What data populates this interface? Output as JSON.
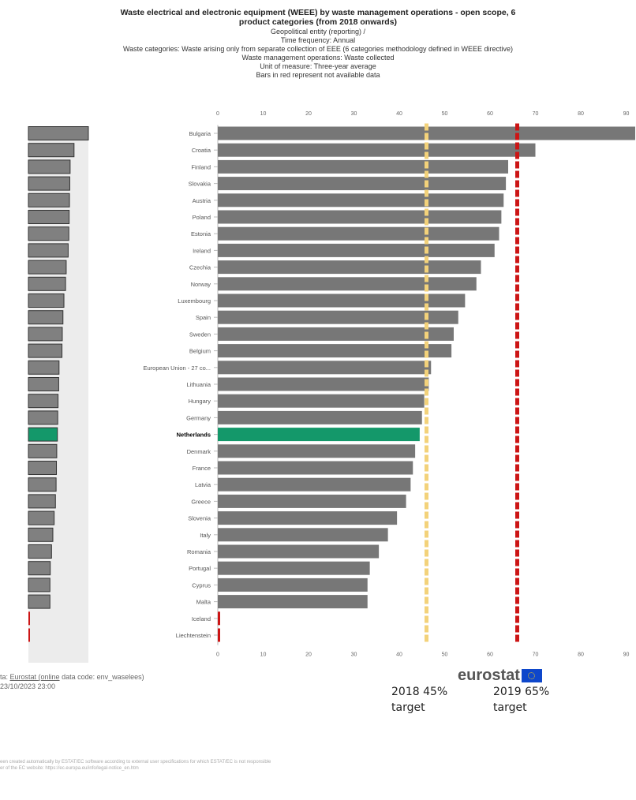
{
  "chart_data": {
    "type": "bar",
    "orientation": "horizontal",
    "title_lines": [
      "Waste electrical and electronic equipment (WEEE) by waste management operations - open scope, 6",
      "product categories (from 2018 onwards)"
    ],
    "subtitle_lines": [
      "Geopolitical entity (reporting) /",
      "Time frequency: Annual",
      "Waste categories: Waste arising only from separate collection of EEE (6 categories methodology defined in WEEE directive)",
      "Waste management operations: Waste collected",
      "Unit of measure: Three-year average",
      "Bars in red represent not available data"
    ],
    "categories": [
      "Bulgaria",
      "Croatia",
      "Finland",
      "Slovakia",
      "Austria",
      "Poland",
      "Estonia",
      "Ireland",
      "Czechia",
      "Norway",
      "Luxembourg",
      "Spain",
      "Sweden",
      "Belgium",
      "European Union - 27 co...",
      "Lithuania",
      "Hungary",
      "Germany",
      "Netherlands",
      "Denmark",
      "France",
      "Latvia",
      "Greece",
      "Slovenia",
      "Italy",
      "Romania",
      "Portugal",
      "Cyprus",
      "Malta",
      "Iceland",
      "Liechtenstein"
    ],
    "values": [
      92,
      70,
      64,
      63.5,
      63,
      62.5,
      62,
      61,
      58,
      57,
      54.5,
      53,
      52,
      51.5,
      47,
      46.5,
      45.5,
      45,
      44.5,
      43.5,
      43,
      42.5,
      41.5,
      39.5,
      37.5,
      35.5,
      33.5,
      33,
      33,
      null,
      null
    ],
    "not_available": [
      "Iceland",
      "Liechtenstein"
    ],
    "highlight": "Netherlands",
    "xlim": [
      0,
      90
    ],
    "xticks": [
      0,
      10,
      20,
      30,
      40,
      50,
      60,
      70,
      80,
      90
    ],
    "reference_lines": [
      {
        "value": 46,
        "color": "#f3d27a"
      },
      {
        "value": 66,
        "color": "#cc1515"
      }
    ],
    "colors": {
      "bar": "#777777",
      "highlight": "#14986a",
      "not_available": "#cc1515",
      "overview_bar": "#808080"
    },
    "grid": false
  },
  "annotations": [
    {
      "line1": "2018 45%",
      "line2": "target"
    },
    {
      "line1": "2019 65%",
      "line2": "target"
    }
  ],
  "source": {
    "prefix": "ta: ",
    "link": "Eurostat (online",
    "code": " data code: env_waselees)",
    "date": "23/10/2023 23:00"
  },
  "logo": {
    "text": "eurostat"
  },
  "footnote": [
    "een created automatically by ESTAT/EC software according to external user specifications for which ESTAT/EC is not responsible",
    "er of the EC website: https://ec.europa.eu/info/legal-notice_en.htm"
  ]
}
